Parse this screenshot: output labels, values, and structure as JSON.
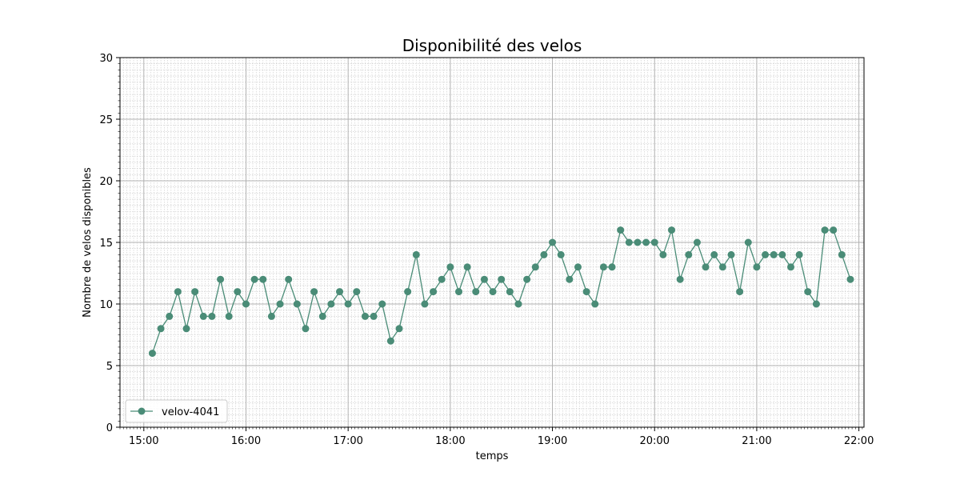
{
  "chart_data": {
    "type": "line",
    "title": "Disponibilité des velos",
    "xlabel": "temps",
    "ylabel": "Nombre de velos disponibles",
    "x_unit": "time of day",
    "xlim": [
      "14:46",
      "22:03"
    ],
    "ylim": [
      0,
      30
    ],
    "x_ticks": [
      "15:00",
      "16:00",
      "17:00",
      "18:00",
      "19:00",
      "20:00",
      "21:00",
      "22:00"
    ],
    "y_ticks": [
      0,
      5,
      10,
      15,
      20,
      25,
      30
    ],
    "grid": true,
    "minor_grid": true,
    "legend_position": "bottom-left",
    "series": [
      {
        "name": "velov-4041",
        "color": "#4a8c77",
        "marker": "circle",
        "x": [
          "15:05",
          "15:10",
          "15:15",
          "15:20",
          "15:25",
          "15:30",
          "15:35",
          "15:40",
          "15:45",
          "15:50",
          "15:55",
          "16:00",
          "16:05",
          "16:10",
          "16:15",
          "16:20",
          "16:25",
          "16:30",
          "16:35",
          "16:40",
          "16:45",
          "16:50",
          "16:55",
          "17:00",
          "17:05",
          "17:10",
          "17:15",
          "17:20",
          "17:25",
          "17:30",
          "17:35",
          "17:40",
          "17:45",
          "17:50",
          "17:55",
          "18:00",
          "18:05",
          "18:10",
          "18:15",
          "18:20",
          "18:25",
          "18:30",
          "18:35",
          "18:40",
          "18:45",
          "18:50",
          "18:55",
          "19:00",
          "19:05",
          "19:10",
          "19:15",
          "19:20",
          "19:25",
          "19:30",
          "19:35",
          "19:40",
          "19:45",
          "19:50",
          "19:55",
          "20:00",
          "20:05",
          "20:10",
          "20:15",
          "20:20",
          "20:25",
          "20:30",
          "20:35",
          "20:40",
          "20:45",
          "20:50",
          "20:55",
          "21:00",
          "21:05",
          "21:10",
          "21:15",
          "21:20",
          "21:25",
          "21:30",
          "21:35",
          "21:40",
          "21:45",
          "21:50",
          "21:55"
        ],
        "y": [
          6,
          8,
          9,
          11,
          8,
          11,
          9,
          9,
          12,
          9,
          11,
          10,
          12,
          12,
          9,
          10,
          12,
          10,
          8,
          11,
          9,
          10,
          11,
          10,
          11,
          9,
          9,
          10,
          7,
          8,
          11,
          14,
          10,
          11,
          12,
          13,
          11,
          13,
          11,
          12,
          11,
          12,
          11,
          10,
          12,
          13,
          14,
          15,
          14,
          12,
          13,
          11,
          10,
          13,
          13,
          16,
          15,
          15,
          15,
          15,
          14,
          16,
          12,
          14,
          15,
          13,
          14,
          13,
          14,
          11,
          15,
          13,
          14,
          14,
          14,
          13,
          14,
          11,
          10,
          16,
          16,
          14,
          12
        ]
      }
    ]
  }
}
